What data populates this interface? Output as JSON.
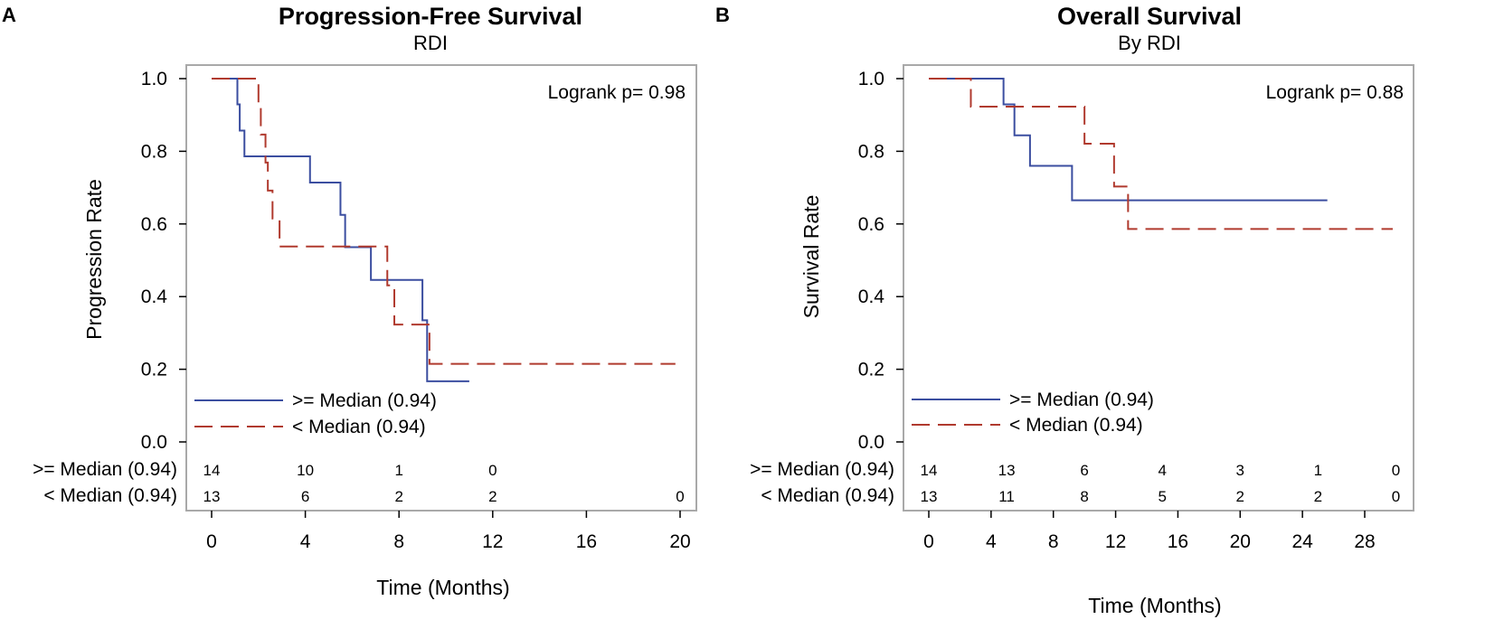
{
  "chart_data": [
    {
      "type": "line",
      "panel_letter": "A",
      "title": "Progression-Free Survival",
      "subtitle": "RDI",
      "xlabel": "Time (Months)",
      "ylabel": "Progression Rate",
      "xlim": [
        0,
        20
      ],
      "ylim": [
        0,
        1
      ],
      "xticks": [
        "0",
        "4",
        "8",
        "12",
        "16",
        "20"
      ],
      "yticks": [
        "0.0",
        "0.2",
        "0.4",
        "0.6",
        "0.8",
        "1.0"
      ],
      "annotation": "Logrank p=  0.98",
      "series": [
        {
          "name": ">= Median (0.94)",
          "color": "#3b4ea0",
          "style": "solid",
          "x": [
            0,
            1.1,
            1.2,
            1.4,
            2.0,
            4.2,
            5.5,
            5.7,
            6.8,
            9.0,
            9.2,
            11.0
          ],
          "y": [
            1.0,
            0.929,
            0.857,
            0.786,
            0.786,
            0.714,
            0.625,
            0.536,
            0.446,
            0.335,
            0.167,
            0.167
          ]
        },
        {
          "name": "< Median (0.94)",
          "color": "#b03a2e",
          "style": "dashed",
          "x": [
            0,
            2.0,
            2.1,
            2.3,
            2.4,
            2.6,
            2.9,
            7.2,
            7.5,
            7.8,
            9.3,
            19.8
          ],
          "y": [
            1.0,
            0.923,
            0.846,
            0.769,
            0.692,
            0.615,
            0.538,
            0.538,
            0.431,
            0.323,
            0.215,
            0.215
          ]
        }
      ],
      "risk_table": {
        "rows": [
          {
            "label": ">= Median (0.94)",
            "counts": [
              "14",
              "10",
              "1",
              "0",
              "",
              ""
            ]
          },
          {
            "label": "< Median (0.94)",
            "counts": [
              "13",
              "6",
              "2",
              "2",
              "",
              "0"
            ]
          }
        ],
        "times": [
          0,
          4,
          8,
          12,
          16,
          20
        ]
      }
    },
    {
      "type": "line",
      "panel_letter": "B",
      "title": "Overall Survival",
      "subtitle": "By RDI",
      "xlabel": "Time (Months)",
      "ylabel": "Survival Rate",
      "xlim": [
        0,
        30
      ],
      "ylim": [
        0,
        1
      ],
      "xticks": [
        "0",
        "4",
        "8",
        "12",
        "16",
        "20",
        "24",
        "28"
      ],
      "yticks": [
        "0.0",
        "0.2",
        "0.4",
        "0.6",
        "0.8",
        "1.0"
      ],
      "annotation": "Logrank p=  0.88",
      "series": [
        {
          "name": ">= Median (0.94)",
          "color": "#3b4ea0",
          "style": "solid",
          "x": [
            0,
            4.8,
            5.5,
            6.5,
            9.2,
            25.6
          ],
          "y": [
            1.0,
            0.929,
            0.844,
            0.76,
            0.665,
            0.665
          ]
        },
        {
          "name": "< Median (0.94)",
          "color": "#b03a2e",
          "style": "dashed",
          "x": [
            0,
            2.7,
            10.0,
            11.9,
            12.8,
            29.8
          ],
          "y": [
            1.0,
            0.923,
            0.821,
            0.703,
            0.586,
            0.586
          ]
        }
      ],
      "risk_table": {
        "rows": [
          {
            "label": ">= Median (0.94)",
            "counts": [
              "14",
              "13",
              "6",
              "4",
              "3",
              "1",
              "0"
            ]
          },
          {
            "label": "< Median (0.94)",
            "counts": [
              "13",
              "11",
              "8",
              "5",
              "2",
              "2",
              "0"
            ]
          }
        ],
        "times": [
          0,
          5,
          10,
          15,
          20,
          25,
          30
        ]
      }
    }
  ]
}
